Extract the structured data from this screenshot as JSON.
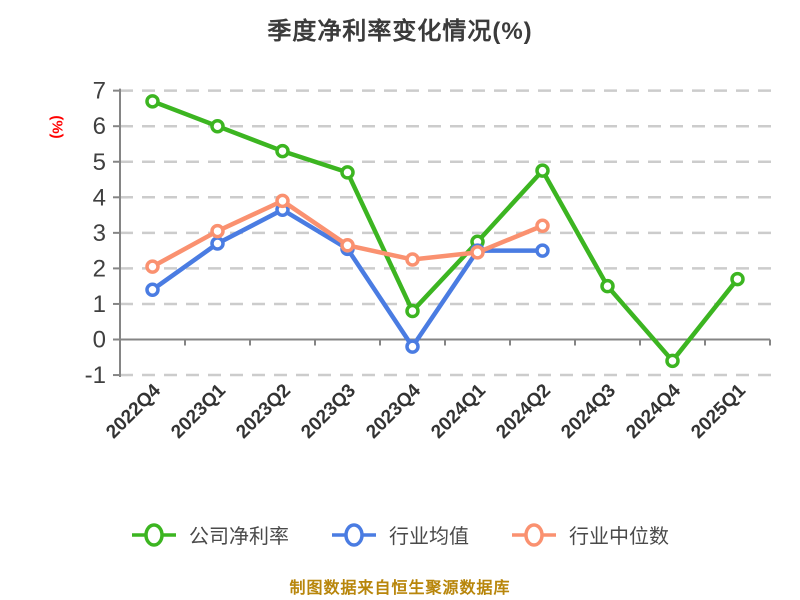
{
  "page": {
    "title": "季度净利率变化情况(%)",
    "caption": "制图数据来自恒生聚源数据库"
  },
  "chart_data": {
    "type": "line",
    "title": "季度净利率变化情况(%)",
    "ylabel": "(%)",
    "xlabel": "",
    "categories": [
      "2022Q4",
      "2023Q1",
      "2023Q2",
      "2023Q3",
      "2023Q4",
      "2024Q1",
      "2024Q2",
      "2024Q3",
      "2024Q4",
      "2025Q1"
    ],
    "series": [
      {
        "name": "公司净利率",
        "color": "#3cb521",
        "values": [
          6.7,
          6.0,
          5.3,
          4.7,
          0.8,
          2.75,
          4.75,
          1.5,
          -0.6,
          1.7
        ]
      },
      {
        "name": "行业均值",
        "color": "#4a7ce2",
        "values": [
          1.4,
          2.7,
          3.65,
          2.55,
          -0.2,
          2.5,
          2.5,
          null,
          null,
          null
        ]
      },
      {
        "name": "行业中位数",
        "color": "#fa9170",
        "values": [
          2.05,
          3.05,
          3.9,
          2.65,
          2.25,
          2.45,
          3.2,
          null,
          null,
          null
        ]
      }
    ],
    "ylim": [
      -1,
      7
    ],
    "yticks": [
      -1,
      0,
      1,
      2,
      3,
      4,
      5,
      6,
      7
    ],
    "grid": "dashed-horizontal",
    "legend_position": "bottom",
    "marker": "circle-white-fill",
    "x_label_rotation": -45
  },
  "colors": {
    "background": "#ffffff",
    "title": "#3b3b3b",
    "axis": "#858585",
    "grid": "#cccccc",
    "y_tick_label": "#404040",
    "x_tick_label": "#333333",
    "legend_text": "#4a4a4a",
    "ylabel": "#ff0000",
    "caption": "#b8860b"
  }
}
